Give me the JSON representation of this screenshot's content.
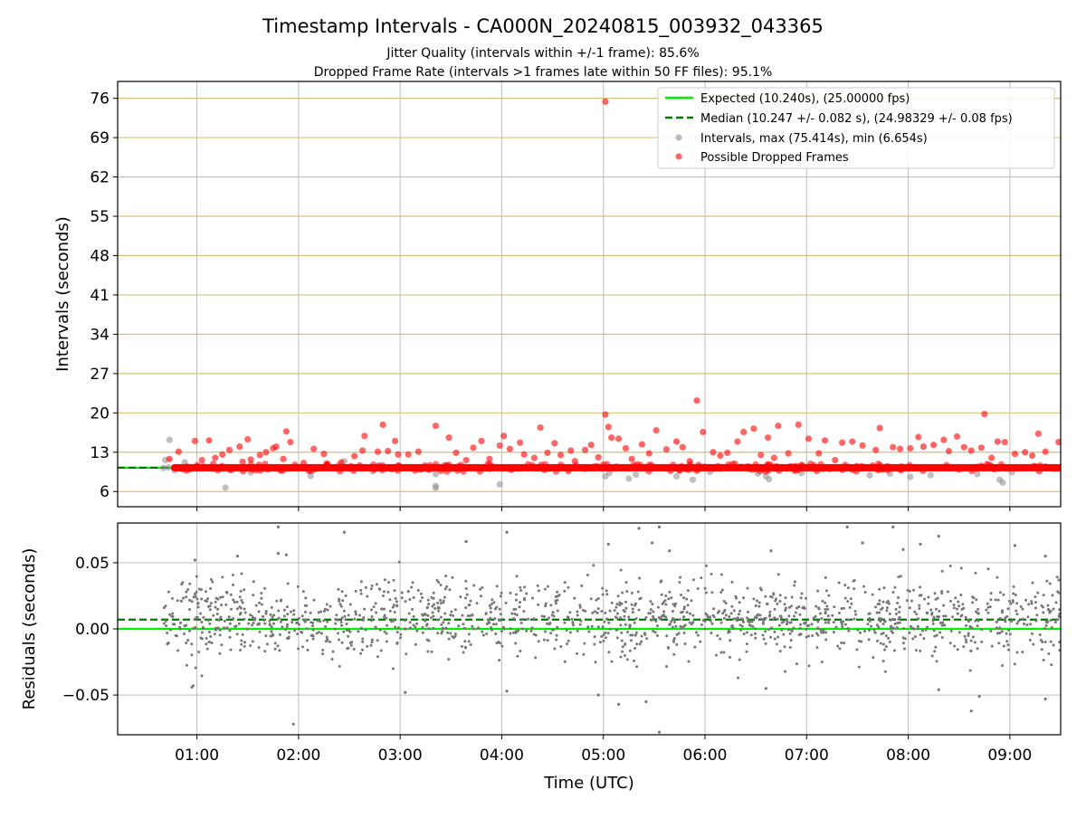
{
  "title": "Timestamp Intervals - CA000N_20240815_003932_043365",
  "subtitle_1": "Jitter Quality (intervals within +/-1 frame): 85.6%",
  "subtitle_2": "Dropped Frame Rate (intervals >1 frames late within 50 FF files): 95.1%",
  "colors": {
    "expected": "#00ee00",
    "median": "#007a00",
    "intervals": "#8c8c8c",
    "dropped": "#ff0000",
    "hgrid": "#d9c07a",
    "vgrid": "#bdbdbd",
    "residuals": "#777777"
  },
  "chart_data": [
    {
      "type": "scatter",
      "panel": "top",
      "ylabel": "Intervals (seconds)",
      "xlabel": "",
      "xlim_hours": [
        0.22,
        9.5
      ],
      "ylim": [
        3.3,
        79.0
      ],
      "yticks": [
        6,
        13,
        20,
        27,
        34,
        41,
        48,
        55,
        62,
        69,
        76
      ],
      "ytick_labels": [
        "6",
        "13",
        "20",
        "27",
        "34",
        "41",
        "48",
        "55",
        "62",
        "69",
        "76"
      ],
      "grid": "on",
      "legend_placement": "top-right",
      "legend": [
        {
          "label": "Expected (10.240s), (25.00000 fps)",
          "kind": "solid-line"
        },
        {
          "label": "Median (10.247 +/- 0.082 s), (24.98329 +/- 0.08 fps)",
          "kind": "dashed-line"
        },
        {
          "label": "Intervals, max (75.414s), min (6.654s)",
          "kind": "grey-marker"
        },
        {
          "label": "Possible Dropped Frames",
          "kind": "red-marker"
        }
      ],
      "expected_interval": 10.24,
      "median_interval": 10.247,
      "series_start_hour": 0.67,
      "series_end_hour": 9.5,
      "dropped_band": {
        "start_hour": 0.78,
        "end_hour": 9.5,
        "value": 10.24
      },
      "intervals_points": [
        [
          0.67,
          10.2
        ],
        [
          0.69,
          11.6
        ],
        [
          0.73,
          15.2
        ],
        [
          0.72,
          10.3
        ],
        [
          0.78,
          9.8
        ],
        [
          0.88,
          11.2
        ],
        [
          1.28,
          6.7
        ],
        [
          1.35,
          9.8
        ],
        [
          1.53,
          9.4
        ],
        [
          2.12,
          8.8
        ],
        [
          2.4,
          10.8
        ],
        [
          2.45,
          11.4
        ],
        [
          2.73,
          9.6
        ],
        [
          3.35,
          7.0
        ],
        [
          3.35,
          6.65
        ],
        [
          3.35,
          9.1
        ],
        [
          3.98,
          7.3
        ],
        [
          5.02,
          8.7
        ],
        [
          5.06,
          9.3
        ],
        [
          5.25,
          8.3
        ],
        [
          5.32,
          9.0
        ],
        [
          5.72,
          8.7
        ],
        [
          5.88,
          8.1
        ],
        [
          6.05,
          9.5
        ],
        [
          6.52,
          9.2
        ],
        [
          6.6,
          8.7
        ],
        [
          6.63,
          8.2
        ],
        [
          6.95,
          9.3
        ],
        [
          7.62,
          8.9
        ],
        [
          7.82,
          9.2
        ],
        [
          8.02,
          8.6
        ],
        [
          8.22,
          8.9
        ],
        [
          8.68,
          9.1
        ],
        [
          8.9,
          8.1
        ],
        [
          8.93,
          7.6
        ],
        [
          9.02,
          9.4
        ]
      ],
      "dropped_points": [
        [
          0.73,
          11.8
        ],
        [
          0.82,
          13.1
        ],
        [
          0.98,
          15.0
        ],
        [
          1.05,
          11.6
        ],
        [
          1.12,
          15.1
        ],
        [
          1.18,
          12.0
        ],
        [
          1.25,
          12.6
        ],
        [
          1.32,
          13.4
        ],
        [
          1.42,
          14.0
        ],
        [
          1.45,
          11.3
        ],
        [
          1.5,
          15.3
        ],
        [
          1.53,
          11.7
        ],
        [
          1.62,
          12.5
        ],
        [
          1.68,
          13.0
        ],
        [
          1.75,
          13.7
        ],
        [
          1.78,
          14.0
        ],
        [
          1.85,
          11.8
        ],
        [
          1.88,
          16.7
        ],
        [
          1.92,
          14.8
        ],
        [
          2.05,
          11.1
        ],
        [
          2.15,
          13.6
        ],
        [
          2.25,
          12.7
        ],
        [
          2.28,
          11.0
        ],
        [
          2.42,
          11.2
        ],
        [
          2.55,
          12.3
        ],
        [
          2.63,
          13.3
        ],
        [
          2.65,
          15.9
        ],
        [
          2.78,
          13.1
        ],
        [
          2.83,
          17.9
        ],
        [
          2.88,
          13.2
        ],
        [
          2.95,
          15.0
        ],
        [
          2.98,
          12.6
        ],
        [
          3.08,
          12.6
        ],
        [
          3.18,
          13.1
        ],
        [
          3.35,
          17.7
        ],
        [
          3.48,
          15.6
        ],
        [
          3.55,
          12.9
        ],
        [
          3.65,
          11.6
        ],
        [
          3.72,
          13.8
        ],
        [
          3.8,
          15.0
        ],
        [
          3.88,
          11.8
        ],
        [
          3.98,
          14.2
        ],
        [
          4.02,
          15.9
        ],
        [
          4.08,
          13.6
        ],
        [
          4.18,
          14.7
        ],
        [
          4.22,
          12.6
        ],
        [
          4.32,
          12.0
        ],
        [
          4.38,
          17.4
        ],
        [
          4.45,
          12.9
        ],
        [
          4.52,
          14.6
        ],
        [
          4.58,
          12.5
        ],
        [
          4.68,
          13.3
        ],
        [
          4.72,
          11.4
        ],
        [
          4.82,
          13.4
        ],
        [
          4.88,
          14.3
        ],
        [
          4.95,
          12.1
        ],
        [
          5.02,
          19.7
        ],
        [
          5.05,
          17.5
        ],
        [
          5.08,
          15.6
        ],
        [
          5.15,
          15.4
        ],
        [
          5.22,
          13.7
        ],
        [
          5.28,
          11.8
        ],
        [
          5.38,
          14.4
        ],
        [
          5.45,
          12.8
        ],
        [
          5.52,
          16.9
        ],
        [
          5.62,
          13.5
        ],
        [
          5.72,
          14.9
        ],
        [
          5.78,
          13.9
        ],
        [
          5.85,
          11.4
        ],
        [
          5.92,
          22.2
        ],
        [
          5.98,
          16.6
        ],
        [
          6.08,
          13.0
        ],
        [
          6.15,
          12.4
        ],
        [
          6.22,
          12.9
        ],
        [
          6.32,
          14.9
        ],
        [
          6.38,
          16.6
        ],
        [
          6.48,
          17.2
        ],
        [
          6.55,
          12.5
        ],
        [
          6.62,
          15.6
        ],
        [
          6.68,
          12.0
        ],
        [
          6.72,
          17.7
        ],
        [
          6.82,
          12.8
        ],
        [
          6.92,
          17.9
        ],
        [
          7.02,
          15.4
        ],
        [
          7.12,
          12.8
        ],
        [
          7.18,
          15.1
        ],
        [
          7.28,
          11.6
        ],
        [
          7.35,
          14.7
        ],
        [
          7.45,
          14.9
        ],
        [
          7.55,
          14.2
        ],
        [
          7.68,
          13.4
        ],
        [
          7.72,
          17.3
        ],
        [
          7.85,
          13.9
        ],
        [
          7.92,
          13.6
        ],
        [
          8.02,
          13.7
        ],
        [
          8.1,
          15.7
        ],
        [
          8.15,
          14.0
        ],
        [
          8.25,
          14.3
        ],
        [
          8.35,
          15.2
        ],
        [
          8.4,
          13.2
        ],
        [
          8.48,
          15.8
        ],
        [
          8.55,
          13.9
        ],
        [
          8.62,
          13.3
        ],
        [
          8.72,
          13.8
        ],
        [
          8.75,
          19.8
        ],
        [
          8.82,
          12.0
        ],
        [
          8.88,
          14.9
        ],
        [
          8.95,
          14.8
        ],
        [
          9.05,
          12.7
        ],
        [
          9.15,
          13.0
        ],
        [
          9.22,
          12.4
        ],
        [
          9.28,
          16.3
        ],
        [
          9.35,
          13.1
        ],
        [
          9.48,
          14.8
        ],
        [
          5.02,
          75.4
        ]
      ]
    },
    {
      "type": "scatter",
      "panel": "bottom",
      "ylabel": "Residuals (seconds)",
      "xlabel": "Time (UTC)",
      "xlim_hours": [
        0.22,
        9.5
      ],
      "ylim": [
        -0.08,
        0.08
      ],
      "yticks": [
        0.05,
        0.0,
        -0.05
      ],
      "ytick_labels": [
        "0.05",
        "0.00",
        "−0.05"
      ],
      "xticks_hours": [
        1,
        2,
        3,
        4,
        5,
        6,
        7,
        8,
        9
      ],
      "xtick_labels": [
        "01:00",
        "02:00",
        "03:00",
        "04:00",
        "05:00",
        "06:00",
        "07:00",
        "08:00",
        "09:00"
      ],
      "grid": "on",
      "expected_residual": 0.0,
      "median_residual": 0.007,
      "residual_center": 0.007,
      "residual_spread": 0.015,
      "residual_point_count": 1500,
      "residual_outliers": [
        [
          1.8,
          0.077
        ],
        [
          2.45,
          0.073
        ],
        [
          0.98,
          0.052
        ],
        [
          1.4,
          0.055
        ],
        [
          1.8,
          0.057
        ],
        [
          1.88,
          0.056
        ],
        [
          3.65,
          0.066
        ],
        [
          4.05,
          0.073
        ],
        [
          5.05,
          0.064
        ],
        [
          5.35,
          0.076
        ],
        [
          5.55,
          0.077
        ],
        [
          5.48,
          0.065
        ],
        [
          5.65,
          0.059
        ],
        [
          6.65,
          0.059
        ],
        [
          7.4,
          0.077
        ],
        [
          7.55,
          0.065
        ],
        [
          7.85,
          0.077
        ],
        [
          7.95,
          0.06
        ],
        [
          8.12,
          0.064
        ],
        [
          8.3,
          0.07
        ],
        [
          9.05,
          0.063
        ],
        [
          9.35,
          0.055
        ],
        [
          1.95,
          -0.072
        ],
        [
          5.15,
          -0.057
        ],
        [
          5.55,
          -0.078
        ],
        [
          3.05,
          -0.048
        ],
        [
          4.05,
          -0.047
        ],
        [
          6.6,
          -0.045
        ],
        [
          8.3,
          -0.046
        ],
        [
          8.62,
          -0.062
        ],
        [
          8.7,
          -0.051
        ],
        [
          9.35,
          -0.053
        ],
        [
          0.95,
          -0.044
        ],
        [
          4.95,
          -0.05
        ],
        [
          5.42,
          -0.055
        ]
      ]
    }
  ]
}
